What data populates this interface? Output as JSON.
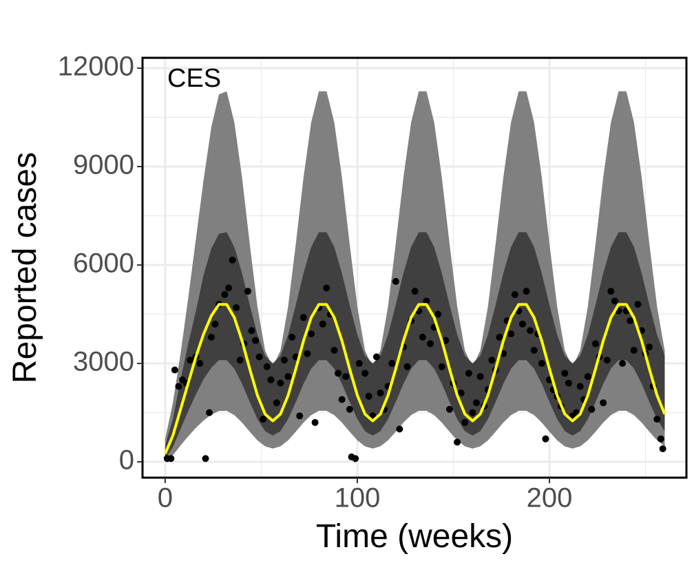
{
  "chart_data": {
    "type": "band-line-scatter",
    "annotation": "CES",
    "x_label": "Time (weeks)",
    "y_label": "Reported cases",
    "xlim": [
      -11.8,
      271.3
    ],
    "ylim": [
      -482,
      12315
    ],
    "xticks": [
      0,
      100,
      200
    ],
    "yticks": [
      0,
      3000,
      6000,
      9000,
      12000
    ],
    "minor_xticks": [
      50,
      150,
      250
    ],
    "minor_yticks": [
      1500,
      4500,
      7500,
      10500
    ],
    "grid": true,
    "x": [
      0,
      4,
      8,
      12,
      16,
      20,
      24,
      28,
      32,
      36,
      40,
      44,
      48,
      52,
      56,
      60,
      64,
      68,
      72,
      76,
      80,
      84,
      88,
      92,
      96,
      100,
      104,
      108,
      112,
      116,
      120,
      124,
      128,
      132,
      136,
      140,
      144,
      148,
      152,
      156,
      160,
      164,
      168,
      172,
      176,
      180,
      184,
      188,
      192,
      196,
      200,
      204,
      208,
      212,
      216,
      220,
      224,
      228,
      232,
      236,
      240,
      244,
      248,
      252,
      256,
      260
    ],
    "bands": [
      {
        "color": "#808080",
        "lower": [
          50,
          200,
          500,
          780,
          1040,
          1260,
          1440,
          1550,
          1555,
          1425,
          1195,
          918,
          657,
          472,
          405,
          472,
          657,
          918,
          1195,
          1425,
          1555,
          1555,
          1425,
          1195,
          918,
          657,
          472,
          405,
          472,
          657,
          918,
          1195,
          1425,
          1555,
          1555,
          1425,
          1195,
          918,
          657,
          472,
          405,
          472,
          657,
          918,
          1195,
          1425,
          1555,
          1555,
          1425,
          1195,
          918,
          657,
          472,
          405,
          472,
          657,
          918,
          1195,
          1425,
          1555,
          1555,
          1425,
          1195,
          918,
          657,
          472
        ],
        "upper": [
          700,
          1800,
          3300,
          5000,
          6800,
          8600,
          10200,
          11200,
          11295,
          10348,
          8670,
          6647,
          4740,
          3389,
          2900,
          3389,
          4740,
          6647,
          8670,
          10348,
          11295,
          11295,
          10348,
          8670,
          6647,
          4740,
          3389,
          2900,
          3389,
          4740,
          6647,
          8670,
          10348,
          11295,
          11295,
          10348,
          8670,
          6647,
          4740,
          3389,
          2900,
          3389,
          4740,
          6647,
          8670,
          10348,
          11295,
          11295,
          10348,
          8670,
          6647,
          4740,
          3389,
          2900,
          3389,
          4740,
          6647,
          8670,
          10348,
          11295,
          11295,
          10348,
          8670,
          6647,
          4740,
          3389
        ]
      },
      {
        "color": "#404040",
        "lower": [
          100,
          450,
          1000,
          1550,
          2060,
          2520,
          2870,
          3100,
          3100,
          2840,
          2380,
          1826,
          1304,
          934,
          800,
          934,
          1304,
          1826,
          2380,
          2840,
          3100,
          3100,
          2840,
          2380,
          1826,
          1304,
          934,
          800,
          934,
          1304,
          1826,
          2380,
          2840,
          3100,
          3100,
          2840,
          2380,
          1826,
          1304,
          934,
          800,
          934,
          1304,
          1826,
          2380,
          2840,
          3100,
          3100,
          2840,
          2380,
          1826,
          1304,
          934,
          800,
          934,
          1304,
          1826,
          2380,
          2840,
          3100,
          3100,
          2840,
          2380,
          1826,
          1304,
          934
        ],
        "upper": [
          500,
          1300,
          2500,
          3600,
          4600,
          5700,
          6500,
          6950,
          7000,
          6549,
          5749,
          4786,
          3878,
          3234,
          3001,
          3234,
          3878,
          4786,
          5749,
          6549,
          7000,
          7000,
          6549,
          5749,
          4786,
          3878,
          3234,
          3001,
          3234,
          3878,
          4786,
          5749,
          6549,
          7000,
          7000,
          6549,
          5749,
          4786,
          3878,
          3234,
          3001,
          3234,
          3878,
          4786,
          5749,
          6549,
          7000,
          7000,
          6549,
          5749,
          4786,
          3878,
          3234,
          3001,
          3234,
          3878,
          4786,
          5749,
          6549,
          7000,
          7000,
          6549,
          5749,
          4786,
          3878,
          3234
        ]
      }
    ],
    "series": [
      {
        "color": "#ffff00",
        "values": [
          250,
          800,
          1600,
          2400,
          3200,
          3900,
          4450,
          4800,
          4798,
          4398,
          3689,
          2834,
          2028,
          1457,
          1250,
          1457,
          2028,
          2834,
          3689,
          4398,
          4798,
          4798,
          4398,
          3689,
          2834,
          2028,
          1457,
          1250,
          1457,
          2028,
          2834,
          3689,
          4398,
          4798,
          4798,
          4398,
          3689,
          2834,
          2028,
          1457,
          1250,
          1457,
          2028,
          2834,
          3689,
          4398,
          4798,
          4798,
          4398,
          3689,
          2834,
          2028,
          1457,
          1250,
          1457,
          2028,
          2834,
          3689,
          4398,
          4798,
          4798,
          4398,
          3689,
          2834,
          2028,
          1457
        ]
      }
    ],
    "points": {
      "color": "#000000",
      "x": [
        1,
        3,
        5,
        7,
        9,
        11,
        13,
        16,
        18,
        21,
        23,
        24,
        26,
        28,
        31,
        33,
        35,
        37,
        39,
        41,
        43,
        45,
        47,
        49,
        51,
        53,
        55,
        58,
        60,
        62,
        64,
        66,
        68,
        70,
        72,
        74,
        76,
        78,
        80,
        82,
        84,
        86,
        88,
        90,
        92,
        94,
        96,
        97,
        99,
        101,
        104,
        106,
        108,
        110,
        112,
        114,
        116,
        118,
        120,
        122,
        124,
        126,
        128,
        130,
        132,
        134,
        136,
        138,
        140,
        142,
        144,
        146,
        148,
        150,
        152,
        154,
        156,
        158,
        160,
        162,
        164,
        166,
        168,
        170,
        172,
        174,
        176,
        178,
        180,
        182,
        184,
        186,
        188,
        190,
        192,
        194,
        196,
        198,
        200,
        202,
        204,
        206,
        208,
        210,
        212,
        214,
        216,
        218,
        220,
        222,
        224,
        226,
        228,
        230,
        232,
        234,
        236,
        238,
        240,
        242,
        244,
        246,
        248,
        250,
        252,
        254,
        256,
        258,
        259
      ],
      "y": [
        100,
        100,
        2800,
        2300,
        2500,
        2400,
        3100,
        3200,
        3000,
        100,
        1500,
        3800,
        4200,
        4800,
        5100,
        5300,
        6150,
        4700,
        3100,
        3600,
        5200,
        4000,
        3700,
        3200,
        1300,
        2900,
        2500,
        1800,
        2400,
        3100,
        2600,
        3800,
        3200,
        1400,
        4400,
        3300,
        3900,
        1200,
        4700,
        4200,
        5300,
        4500,
        3400,
        2700,
        1900,
        2600,
        1600,
        150,
        100,
        3000,
        2700,
        2000,
        1400,
        3200,
        2100,
        1600,
        2300,
        3000,
        5500,
        1000,
        3500,
        2900,
        4300,
        5200,
        4600,
        3800,
        4900,
        3600,
        4100,
        4500,
        2900,
        3700,
        1600,
        2400,
        600,
        2100,
        1200,
        2700,
        1500,
        1800,
        2600,
        1700,
        2200,
        3100,
        2800,
        3800,
        3300,
        4300,
        3900,
        5100,
        4600,
        4200,
        5200,
        4000,
        3400,
        3900,
        3000,
        700,
        2500,
        2200,
        2000,
        1700,
        2700,
        2400,
        1400,
        1500,
        2300,
        1900,
        2600,
        1600,
        3600,
        3200,
        1800,
        3100,
        5200,
        4900,
        4600,
        3000,
        4600,
        4300,
        3400,
        4800,
        4000,
        3300,
        3500,
        2300,
        1300,
        700,
        400
      ]
    }
  }
}
